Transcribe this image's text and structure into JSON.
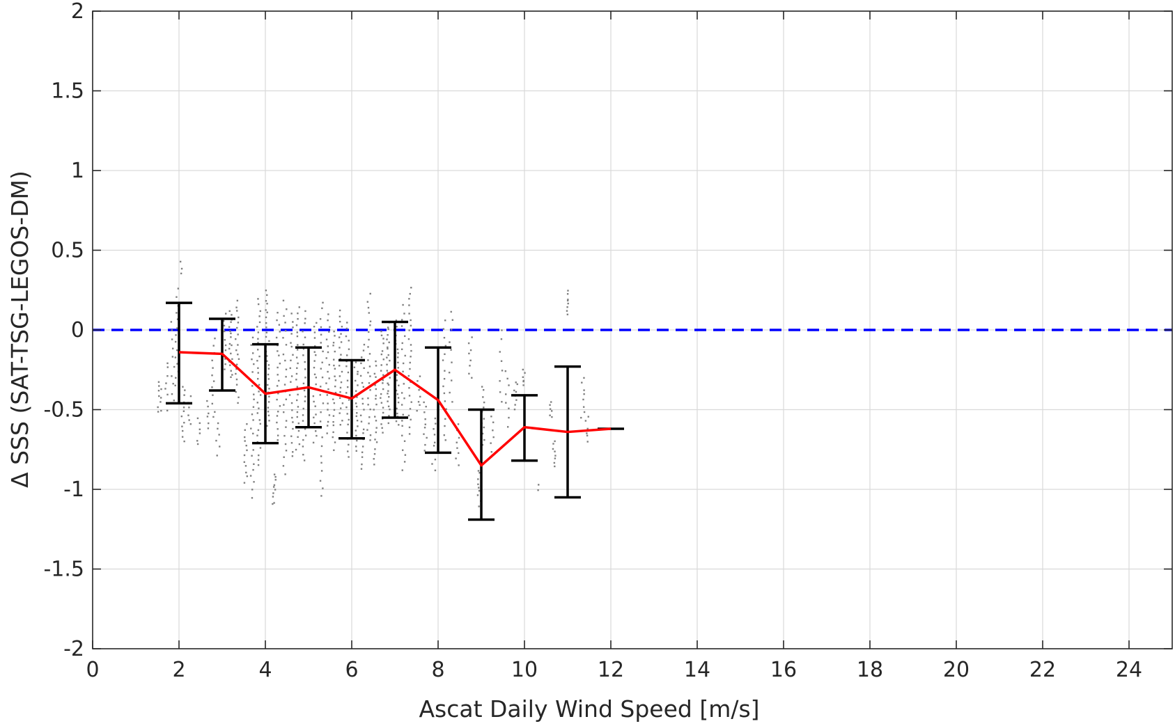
{
  "chart_data": {
    "type": "scatter",
    "title": "",
    "xlabel": "Ascat Daily Wind Speed [m/s]",
    "ylabel": "Δ SSS (SAT-TSG-LEGOS-DM)",
    "xlim": [
      0,
      25
    ],
    "ylim": [
      -2,
      2
    ],
    "x_ticks": [
      0,
      2,
      4,
      6,
      8,
      10,
      12,
      14,
      16,
      18,
      20,
      22,
      24
    ],
    "y_ticks": [
      -2,
      -1.5,
      -1,
      -0.5,
      0,
      0.5,
      1,
      1.5,
      2
    ],
    "x_tick_labels": [
      "0",
      "2",
      "4",
      "6",
      "8",
      "10",
      "12",
      "14",
      "16",
      "18",
      "20",
      "22",
      "24"
    ],
    "y_tick_labels": [
      "-2",
      "-1.5",
      "-1",
      "-0.5",
      "0",
      "0.5",
      "1",
      "1.5",
      "2"
    ],
    "grid": true,
    "colors": {
      "scatter": "#808080",
      "mean_line": "#ff0000",
      "error_bars": "#000000",
      "reference_line": "#0000ff",
      "grid": "#d9d9d9",
      "axes": "#262626"
    },
    "reference_line": {
      "y": 0,
      "style": "dashed"
    },
    "series": [
      {
        "kind": "binned-mean-with-std",
        "x": [
          2,
          3,
          4,
          5,
          6,
          7,
          8,
          9,
          10,
          11,
          12
        ],
        "mean": [
          -0.14,
          -0.15,
          -0.4,
          -0.36,
          -0.43,
          -0.25,
          -0.44,
          -0.85,
          -0.61,
          -0.64,
          -0.62
        ],
        "upper": [
          0.17,
          0.07,
          -0.09,
          -0.11,
          -0.19,
          0.05,
          -0.11,
          -0.5,
          -0.41,
          -0.23,
          -0.62
        ],
        "lower": [
          -0.46,
          -0.38,
          -0.71,
          -0.61,
          -0.68,
          -0.55,
          -0.77,
          -1.19,
          -0.82,
          -1.05,
          -0.62
        ]
      }
    ],
    "scatter_clusters": [
      {
        "x": 1.55,
        "ymin": -0.52,
        "ymax": -0.32,
        "n": 10
      },
      {
        "x": 1.7,
        "ymin": -0.5,
        "ymax": -0.2,
        "n": 8
      },
      {
        "x": 1.85,
        "ymin": -0.45,
        "ymax": 0.05,
        "n": 10
      },
      {
        "x": 1.95,
        "ymin": -0.35,
        "ymax": 0.25,
        "n": 14
      },
      {
        "x": 2.05,
        "ymin": 0.35,
        "ymax": 0.43,
        "n": 3
      },
      {
        "x": 2.1,
        "ymin": -0.7,
        "ymax": -0.35,
        "n": 12
      },
      {
        "x": 2.25,
        "ymin": -0.6,
        "ymax": -0.42,
        "n": 6
      },
      {
        "x": 2.45,
        "ymin": -0.72,
        "ymax": -0.55,
        "n": 6
      },
      {
        "x": 2.65,
        "ymin": -0.62,
        "ymax": -0.45,
        "n": 6
      },
      {
        "x": 2.8,
        "ymin": -0.55,
        "ymax": -0.05,
        "n": 12
      },
      {
        "x": 2.9,
        "ymin": -0.78,
        "ymax": -0.58,
        "n": 6
      },
      {
        "x": 3.05,
        "ymin": -0.25,
        "ymax": 0.1,
        "n": 10
      },
      {
        "x": 3.2,
        "ymin": -0.3,
        "ymax": 0.12,
        "n": 18
      },
      {
        "x": 3.35,
        "ymin": -0.45,
        "ymax": 0.18,
        "n": 20
      },
      {
        "x": 3.55,
        "ymin": -0.95,
        "ymax": -0.6,
        "n": 12
      },
      {
        "x": 3.7,
        "ymin": -1.05,
        "ymax": -0.05,
        "n": 24
      },
      {
        "x": 3.85,
        "ymin": -0.85,
        "ymax": 0.2,
        "n": 30
      },
      {
        "x": 4.05,
        "ymin": -0.6,
        "ymax": 0.25,
        "n": 30
      },
      {
        "x": 4.2,
        "ymin": -1.1,
        "ymax": -0.9,
        "n": 10
      },
      {
        "x": 4.3,
        "ymin": -0.7,
        "ymax": 0.1,
        "n": 22
      },
      {
        "x": 4.45,
        "ymin": -0.9,
        "ymax": 0.18,
        "n": 24
      },
      {
        "x": 4.6,
        "ymin": -0.8,
        "ymax": 0.1,
        "n": 22
      },
      {
        "x": 4.75,
        "ymin": -0.75,
        "ymax": 0.15,
        "n": 24
      },
      {
        "x": 4.9,
        "ymin": -0.82,
        "ymax": 0.12,
        "n": 24
      },
      {
        "x": 5.15,
        "ymin": -0.7,
        "ymax": 0.05,
        "n": 22
      },
      {
        "x": 5.3,
        "ymin": -1.05,
        "ymax": 0.18,
        "n": 24
      },
      {
        "x": 5.45,
        "ymin": -0.65,
        "ymax": 0.1,
        "n": 20
      },
      {
        "x": 5.6,
        "ymin": -0.75,
        "ymax": 0.0,
        "n": 22
      },
      {
        "x": 5.75,
        "ymin": -0.6,
        "ymax": 0.12,
        "n": 22
      },
      {
        "x": 5.9,
        "ymin": -0.8,
        "ymax": 0.05,
        "n": 22
      },
      {
        "x": 6.1,
        "ymin": -0.75,
        "ymax": -0.2,
        "n": 20
      },
      {
        "x": 6.25,
        "ymin": -0.88,
        "ymax": -0.1,
        "n": 22
      },
      {
        "x": 6.4,
        "ymin": -0.7,
        "ymax": 0.22,
        "n": 24
      },
      {
        "x": 6.55,
        "ymin": -0.85,
        "ymax": -0.2,
        "n": 20
      },
      {
        "x": 6.7,
        "ymin": -0.65,
        "ymax": 0.0,
        "n": 22
      },
      {
        "x": 6.85,
        "ymin": -0.58,
        "ymax": 0.05,
        "n": 26
      },
      {
        "x": 7.05,
        "ymin": -0.6,
        "ymax": 0.05,
        "n": 24
      },
      {
        "x": 7.2,
        "ymin": -0.88,
        "ymax": 0.15,
        "n": 24
      },
      {
        "x": 7.35,
        "ymin": -0.65,
        "ymax": 0.27,
        "n": 24
      },
      {
        "x": 7.55,
        "ymin": -0.5,
        "ymax": -0.3,
        "n": 8
      },
      {
        "x": 7.7,
        "ymin": -0.75,
        "ymax": -0.45,
        "n": 10
      },
      {
        "x": 7.9,
        "ymin": -0.88,
        "ymax": -0.55,
        "n": 10
      },
      {
        "x": 8.15,
        "ymin": -0.7,
        "ymax": 0.05,
        "n": 16
      },
      {
        "x": 8.3,
        "ymin": -0.45,
        "ymax": 0.12,
        "n": 10
      },
      {
        "x": 8.45,
        "ymin": -0.85,
        "ymax": -0.6,
        "n": 8
      },
      {
        "x": 8.75,
        "ymin": -0.3,
        "ymax": -0.05,
        "n": 8
      },
      {
        "x": 8.95,
        "ymin": -1.1,
        "ymax": -0.85,
        "n": 10
      },
      {
        "x": 9.05,
        "ymin": -0.72,
        "ymax": -0.35,
        "n": 12
      },
      {
        "x": 9.25,
        "ymin": -0.8,
        "ymax": -0.5,
        "n": 8
      },
      {
        "x": 9.45,
        "ymin": -0.45,
        "ymax": 0.0,
        "n": 8
      },
      {
        "x": 9.6,
        "ymin": -0.6,
        "ymax": -0.25,
        "n": 8
      },
      {
        "x": 9.8,
        "ymin": -0.5,
        "ymax": -0.32,
        "n": 8
      },
      {
        "x": 10.0,
        "ymin": -0.35,
        "ymax": -0.25,
        "n": 6
      },
      {
        "x": 10.3,
        "ymin": -1.0,
        "ymax": -0.97,
        "n": 2
      },
      {
        "x": 10.6,
        "ymin": -0.55,
        "ymax": -0.45,
        "n": 6
      },
      {
        "x": 10.7,
        "ymin": -0.85,
        "ymax": -0.7,
        "n": 8
      },
      {
        "x": 11.0,
        "ymin": 0.1,
        "ymax": 0.24,
        "n": 8
      },
      {
        "x": 11.35,
        "ymin": -0.55,
        "ymax": -0.3,
        "n": 8
      },
      {
        "x": 11.45,
        "ymin": -0.7,
        "ymax": -0.55,
        "n": 6
      }
    ]
  }
}
